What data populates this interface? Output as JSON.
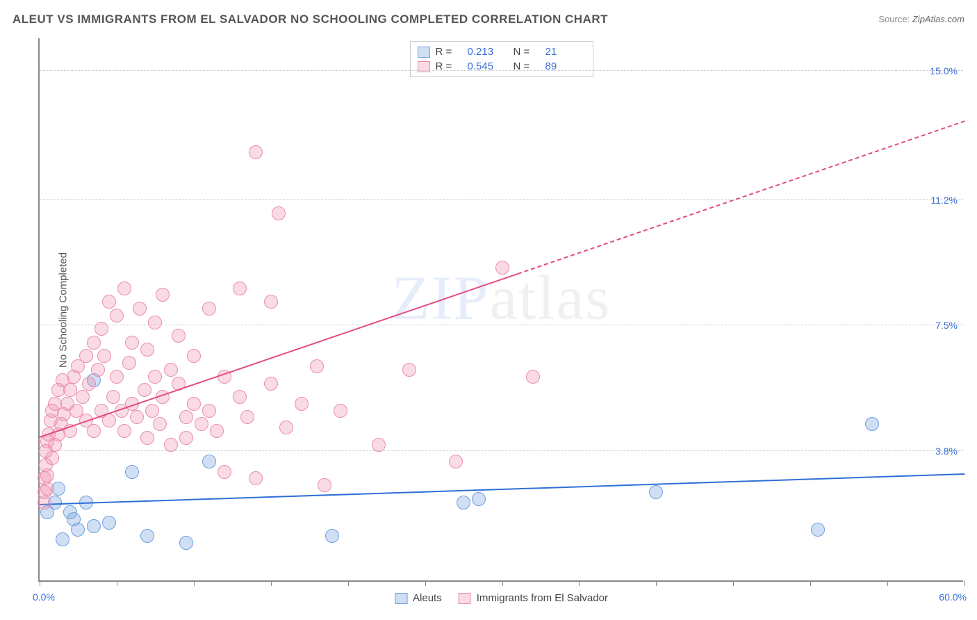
{
  "title": "ALEUT VS IMMIGRANTS FROM EL SALVADOR NO SCHOOLING COMPLETED CORRELATION CHART",
  "source_label": "Source:",
  "source_value": "ZipAtlas.com",
  "ylabel": "No Schooling Completed",
  "watermark_main": "ZIP",
  "watermark_sub": "atlas",
  "chart": {
    "type": "scatter",
    "xlim": [
      0,
      60
    ],
    "ylim": [
      0,
      16
    ],
    "x_tick_step": 5,
    "x_min_label": "0.0%",
    "x_max_label": "60.0%",
    "y_gridlines": [
      {
        "v": 3.8,
        "label": "3.8%"
      },
      {
        "v": 7.5,
        "label": "7.5%"
      },
      {
        "v": 11.2,
        "label": "11.2%"
      },
      {
        "v": 15.0,
        "label": "15.0%"
      }
    ],
    "background_color": "#ffffff",
    "grid_color": "#cccccc",
    "axis_color": "#888888",
    "series": [
      {
        "key": "aleuts",
        "label": "Aleuts",
        "fill": "rgba(119,162,222,0.35)",
        "stroke": "#6f9fe0",
        "trend_color": "#2e6fd6",
        "r_label": "R  =",
        "r_value": "0.213",
        "n_label": "N  =",
        "n_value": "21",
        "marker_r": 10,
        "trend": {
          "x1": 0,
          "y1": 2.2,
          "x2": 60,
          "y2": 3.1,
          "dash_from_x": 60
        },
        "points": [
          [
            0.5,
            2.0
          ],
          [
            1.0,
            2.3
          ],
          [
            1.2,
            2.7
          ],
          [
            1.5,
            1.2
          ],
          [
            2.0,
            2.0
          ],
          [
            2.2,
            1.8
          ],
          [
            2.5,
            1.5
          ],
          [
            3.0,
            2.3
          ],
          [
            3.5,
            1.6
          ],
          [
            3.5,
            5.9
          ],
          [
            4.5,
            1.7
          ],
          [
            6.0,
            3.2
          ],
          [
            7.0,
            1.3
          ],
          [
            9.5,
            1.1
          ],
          [
            11.0,
            3.5
          ],
          [
            19.0,
            1.3
          ],
          [
            27.5,
            2.3
          ],
          [
            28.5,
            2.4
          ],
          [
            40.0,
            2.6
          ],
          [
            50.5,
            1.5
          ],
          [
            54.0,
            4.6
          ]
        ]
      },
      {
        "key": "elsalvador",
        "label": "Immigrants from El Salvador",
        "fill": "rgba(238,140,170,0.32)",
        "stroke": "#e98fae",
        "trend_color": "#e24d83",
        "r_label": "R  =",
        "r_value": "0.545",
        "n_label": "N  =",
        "n_value": "89",
        "marker_r": 10,
        "trend": {
          "x1": 0,
          "y1": 4.2,
          "x2": 60,
          "y2": 13.5,
          "dash_from_x": 31
        },
        "points": [
          [
            0.3,
            2.3
          ],
          [
            0.3,
            2.6
          ],
          [
            0.3,
            3.0
          ],
          [
            0.4,
            3.4
          ],
          [
            0.4,
            3.8
          ],
          [
            0.5,
            4.1
          ],
          [
            0.5,
            3.1
          ],
          [
            0.5,
            2.7
          ],
          [
            0.6,
            4.3
          ],
          [
            0.7,
            4.7
          ],
          [
            0.8,
            3.6
          ],
          [
            0.8,
            5.0
          ],
          [
            1.0,
            5.2
          ],
          [
            1.0,
            4.0
          ],
          [
            1.2,
            4.3
          ],
          [
            1.2,
            5.6
          ],
          [
            1.4,
            4.6
          ],
          [
            1.5,
            5.9
          ],
          [
            1.6,
            4.9
          ],
          [
            1.8,
            5.2
          ],
          [
            2.0,
            5.6
          ],
          [
            2.0,
            4.4
          ],
          [
            2.2,
            6.0
          ],
          [
            2.4,
            5.0
          ],
          [
            2.5,
            6.3
          ],
          [
            2.8,
            5.4
          ],
          [
            3.0,
            6.6
          ],
          [
            3.0,
            4.7
          ],
          [
            3.2,
            5.8
          ],
          [
            3.5,
            7.0
          ],
          [
            3.5,
            4.4
          ],
          [
            3.8,
            6.2
          ],
          [
            4.0,
            7.4
          ],
          [
            4.0,
            5.0
          ],
          [
            4.2,
            6.6
          ],
          [
            4.5,
            4.7
          ],
          [
            4.5,
            8.2
          ],
          [
            4.8,
            5.4
          ],
          [
            5.0,
            7.8
          ],
          [
            5.0,
            6.0
          ],
          [
            5.3,
            5.0
          ],
          [
            5.5,
            4.4
          ],
          [
            5.5,
            8.6
          ],
          [
            5.8,
            6.4
          ],
          [
            6.0,
            5.2
          ],
          [
            6.0,
            7.0
          ],
          [
            6.3,
            4.8
          ],
          [
            6.5,
            8.0
          ],
          [
            6.8,
            5.6
          ],
          [
            7.0,
            6.8
          ],
          [
            7.0,
            4.2
          ],
          [
            7.3,
            5.0
          ],
          [
            7.5,
            7.6
          ],
          [
            7.5,
            6.0
          ],
          [
            7.8,
            4.6
          ],
          [
            8.0,
            8.4
          ],
          [
            8.0,
            5.4
          ],
          [
            8.5,
            6.2
          ],
          [
            8.5,
            4.0
          ],
          [
            9.0,
            7.2
          ],
          [
            9.0,
            5.8
          ],
          [
            9.5,
            4.8
          ],
          [
            9.5,
            4.2
          ],
          [
            10.0,
            6.6
          ],
          [
            10.0,
            5.2
          ],
          [
            10.5,
            4.6
          ],
          [
            11.0,
            8.0
          ],
          [
            11.0,
            5.0
          ],
          [
            11.5,
            4.4
          ],
          [
            12.0,
            6.0
          ],
          [
            12.0,
            3.2
          ],
          [
            13.0,
            5.4
          ],
          [
            13.0,
            8.6
          ],
          [
            13.5,
            4.8
          ],
          [
            14.0,
            12.6
          ],
          [
            14.0,
            3.0
          ],
          [
            15.0,
            5.8
          ],
          [
            15.0,
            8.2
          ],
          [
            15.5,
            10.8
          ],
          [
            16.0,
            4.5
          ],
          [
            17.0,
            5.2
          ],
          [
            18.0,
            6.3
          ],
          [
            18.5,
            2.8
          ],
          [
            19.5,
            5.0
          ],
          [
            22.0,
            4.0
          ],
          [
            24.0,
            6.2
          ],
          [
            27.0,
            3.5
          ],
          [
            30.0,
            9.2
          ],
          [
            32.0,
            6.0
          ]
        ]
      }
    ]
  }
}
